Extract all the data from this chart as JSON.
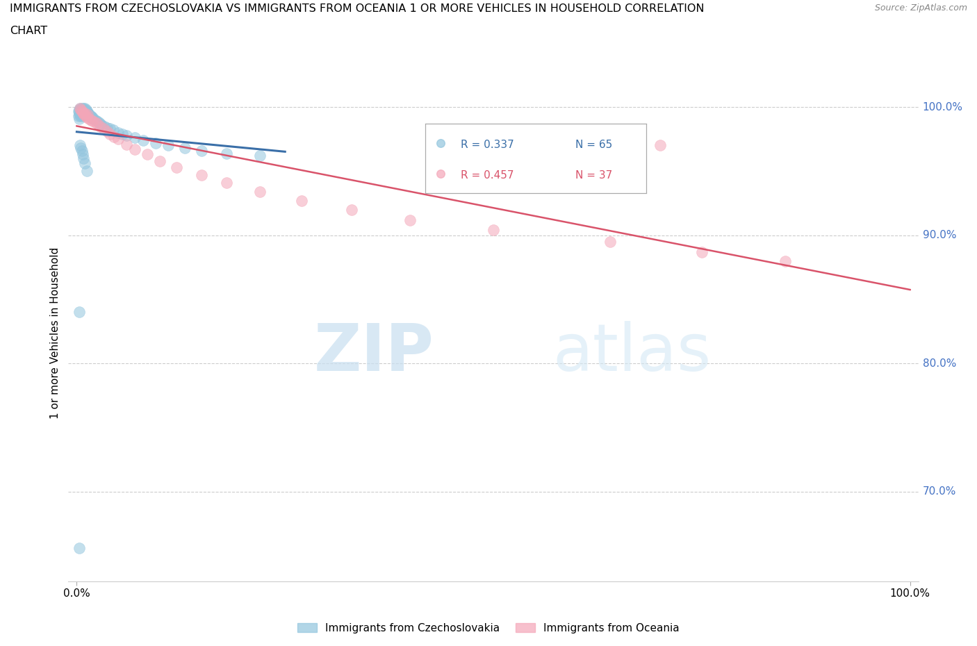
{
  "title_line1": "IMMIGRANTS FROM CZECHOSLOVAKIA VS IMMIGRANTS FROM OCEANIA 1 OR MORE VEHICLES IN HOUSEHOLD CORRELATION",
  "title_line2": "CHART",
  "source": "Source: ZipAtlas.com",
  "ylabel": "1 or more Vehicles in Household",
  "blue_color": "#92c5de",
  "pink_color": "#f4a6b8",
  "blue_line_color": "#3a6fa8",
  "pink_line_color": "#d9536a",
  "ytick_color": "#4472C4",
  "blue_x": [
    0.002,
    0.002,
    0.003,
    0.003,
    0.003,
    0.003,
    0.004,
    0.004,
    0.004,
    0.005,
    0.005,
    0.005,
    0.006,
    0.006,
    0.006,
    0.007,
    0.007,
    0.007,
    0.008,
    0.008,
    0.008,
    0.009,
    0.009,
    0.01,
    0.01,
    0.011,
    0.011,
    0.012,
    0.013,
    0.014,
    0.015,
    0.016,
    0.017,
    0.018,
    0.019,
    0.02,
    0.022,
    0.024,
    0.026,
    0.028,
    0.03,
    0.033,
    0.036,
    0.04,
    0.044,
    0.05,
    0.055,
    0.06,
    0.07,
    0.08,
    0.095,
    0.11,
    0.13,
    0.15,
    0.18,
    0.22,
    0.004,
    0.005,
    0.006,
    0.007,
    0.008,
    0.01,
    0.012,
    0.003,
    0.003
  ],
  "blue_y": [
    0.997,
    0.993,
    0.998,
    0.996,
    0.994,
    0.991,
    0.999,
    0.997,
    0.995,
    0.998,
    0.996,
    0.993,
    0.999,
    0.997,
    0.994,
    0.998,
    0.996,
    0.993,
    0.999,
    0.997,
    0.994,
    0.998,
    0.995,
    0.999,
    0.996,
    0.998,
    0.995,
    0.997,
    0.996,
    0.995,
    0.994,
    0.993,
    0.993,
    0.992,
    0.992,
    0.991,
    0.99,
    0.989,
    0.988,
    0.987,
    0.986,
    0.985,
    0.984,
    0.983,
    0.982,
    0.98,
    0.979,
    0.978,
    0.976,
    0.974,
    0.972,
    0.97,
    0.968,
    0.966,
    0.964,
    0.962,
    0.97,
    0.968,
    0.966,
    0.963,
    0.96,
    0.956,
    0.95,
    0.84,
    0.656
  ],
  "pink_x": [
    0.004,
    0.005,
    0.006,
    0.007,
    0.008,
    0.009,
    0.01,
    0.011,
    0.012,
    0.013,
    0.015,
    0.017,
    0.019,
    0.022,
    0.025,
    0.028,
    0.032,
    0.036,
    0.04,
    0.045,
    0.05,
    0.06,
    0.07,
    0.085,
    0.1,
    0.12,
    0.15,
    0.18,
    0.22,
    0.27,
    0.33,
    0.4,
    0.5,
    0.64,
    0.75,
    0.85,
    0.7
  ],
  "pink_y": [
    0.999,
    0.998,
    0.997,
    0.996,
    0.995,
    0.994,
    0.995,
    0.993,
    0.992,
    0.994,
    0.991,
    0.99,
    0.989,
    0.988,
    0.987,
    0.985,
    0.983,
    0.981,
    0.979,
    0.977,
    0.975,
    0.971,
    0.967,
    0.963,
    0.958,
    0.953,
    0.947,
    0.941,
    0.934,
    0.927,
    0.92,
    0.912,
    0.904,
    0.895,
    0.887,
    0.88,
    0.97
  ],
  "legend_R1": "R = 0.337",
  "legend_N1": "N = 65",
  "legend_R2": "R = 0.457",
  "legend_N2": "N = 37",
  "watermark_zip": "ZIP",
  "watermark_atlas": "atlas"
}
